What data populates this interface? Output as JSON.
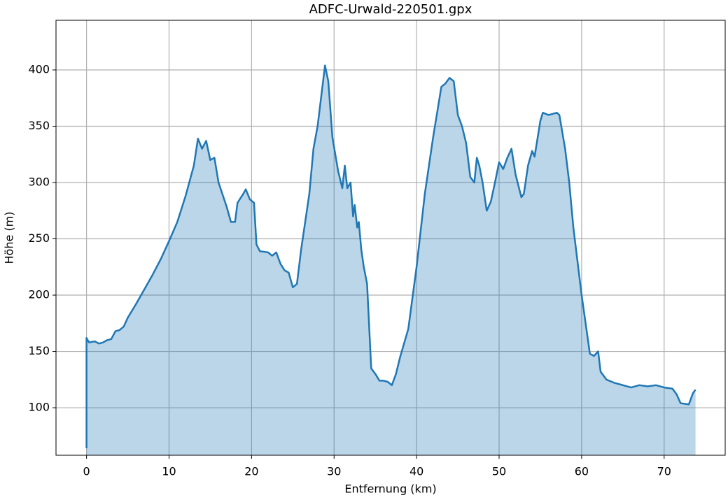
{
  "chart_data": {
    "type": "area",
    "title": "ADFC-Urwald-220501.gpx",
    "x_label": "Entfernung (km)",
    "y_label": "Höhe (m)",
    "color": "#1f77b4",
    "grid": true,
    "xlim": [
      -3.7,
      77.4
    ],
    "ylim": [
      57.8,
      444.1
    ],
    "xticks": [
      0,
      10,
      20,
      30,
      40,
      50,
      60,
      70
    ],
    "yticks": [
      100,
      150,
      200,
      250,
      300,
      350,
      400
    ],
    "x": [
      0,
      0,
      0.3,
      1,
      1.5,
      2,
      2.5,
      3,
      3.5,
      4,
      4.5,
      5,
      6,
      7,
      8,
      9,
      10,
      11,
      12,
      13,
      13.5,
      14,
      14.5,
      15,
      15.5,
      16,
      17,
      17.5,
      18,
      18.3,
      19,
      19.3,
      19.8,
      20.3,
      20.6,
      21,
      22,
      22.5,
      23,
      23.5,
      24,
      24.5,
      25,
      25.5,
      26,
      27,
      27.5,
      28,
      28.5,
      28.9,
      29.3,
      29.8,
      30.5,
      31,
      31.3,
      31.6,
      32,
      32.3,
      32.5,
      32.8,
      33,
      33.3,
      33.6,
      34,
      34.5,
      35,
      35.5,
      36,
      36.5,
      37,
      37.5,
      38,
      39,
      40,
      41,
      42,
      43,
      43.5,
      44,
      44.5,
      45,
      45.5,
      46,
      46.5,
      47,
      47.3,
      47.6,
      48,
      48.5,
      49,
      49.5,
      50,
      50.5,
      51,
      51.5,
      52,
      52.7,
      53,
      53.5,
      54,
      54.3,
      55,
      55.3,
      56,
      57,
      57.3,
      58,
      58.5,
      59,
      60,
      61,
      61.5,
      62,
      62.3,
      63,
      64,
      65,
      66,
      67,
      68,
      69,
      70,
      71,
      71.5,
      72,
      73,
      73.5,
      73.8
    ],
    "values": [
      64,
      162,
      158,
      159,
      157,
      158,
      160,
      161,
      168,
      169,
      172,
      180,
      192,
      205,
      218,
      232,
      248,
      265,
      288,
      315,
      339,
      330,
      337,
      320,
      322,
      300,
      278,
      265,
      265,
      282,
      290,
      294,
      285,
      282,
      245,
      239,
      238,
      235,
      238,
      228,
      222,
      220,
      207,
      210,
      240,
      290,
      330,
      350,
      380,
      404,
      390,
      340,
      310,
      295,
      315,
      295,
      300,
      270,
      280,
      260,
      265,
      240,
      225,
      210,
      135,
      130,
      124,
      124,
      123,
      120,
      130,
      145,
      170,
      225,
      290,
      340,
      385,
      388,
      393,
      390,
      360,
      350,
      335,
      305,
      300,
      322,
      315,
      300,
      275,
      283,
      300,
      318,
      312,
      322,
      330,
      307,
      287,
      290,
      315,
      328,
      323,
      355,
      362,
      360,
      362,
      360,
      330,
      300,
      260,
      200,
      148,
      146,
      150,
      132,
      125,
      122,
      120,
      118,
      120,
      119,
      120,
      118,
      117,
      112,
      104,
      103,
      113,
      116
    ]
  }
}
